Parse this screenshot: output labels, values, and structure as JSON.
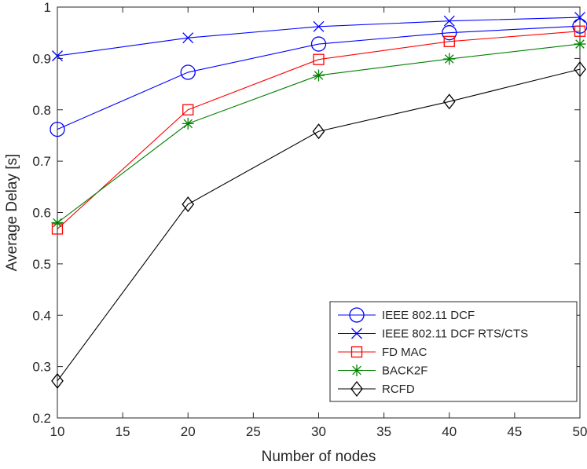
{
  "chart_data": {
    "type": "line",
    "title": "",
    "xlabel": "Number of nodes",
    "ylabel": "Average Delay [s]",
    "xlim": [
      10,
      50
    ],
    "ylim": [
      0.2,
      1.0
    ],
    "xticks": [
      10,
      15,
      20,
      25,
      30,
      35,
      40,
      45,
      50
    ],
    "yticks": [
      0.2,
      0.3,
      0.4,
      0.5,
      0.6,
      0.7,
      0.8,
      0.9,
      1.0
    ],
    "xtick_labels": [
      "10",
      "15",
      "20",
      "25",
      "30",
      "35",
      "40",
      "45",
      "50"
    ],
    "ytick_labels": [
      "0.2",
      "0.3",
      "0.4",
      "0.5",
      "0.6",
      "0.7",
      "0.8",
      "0.9",
      "1"
    ],
    "grid": false,
    "legend_position": "bottom-right",
    "x": [
      10,
      20,
      30,
      40,
      50
    ],
    "series": [
      {
        "name": "IEEE 802.11 DCF",
        "marker": "circle",
        "color": "#0000ff",
        "values": [
          0.762,
          0.873,
          0.928,
          0.95,
          0.963
        ]
      },
      {
        "name": "IEEE 802.11 DCF RTS/CTS",
        "marker": "x",
        "color": "#0000ff",
        "values": [
          0.905,
          0.94,
          0.962,
          0.973,
          0.98
        ]
      },
      {
        "name": "FD MAC",
        "marker": "square",
        "color": "#ff0000",
        "values": [
          0.568,
          0.8,
          0.898,
          0.933,
          0.953
        ]
      },
      {
        "name": "BACK2F",
        "marker": "asterisk",
        "color": "#008000",
        "values": [
          0.58,
          0.773,
          0.867,
          0.899,
          0.928
        ]
      },
      {
        "name": "RCFD",
        "marker": "diamond",
        "color": "#000000",
        "values": [
          0.272,
          0.616,
          0.758,
          0.816,
          0.879
        ]
      }
    ]
  }
}
